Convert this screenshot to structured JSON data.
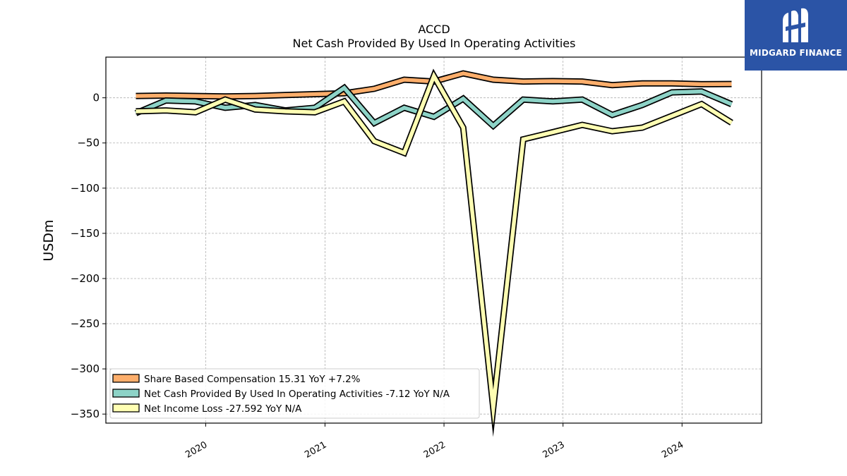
{
  "logo": {
    "text": "MIDGARD FINANCE",
    "bg_color": "#2b54a6"
  },
  "chart_data": {
    "type": "line",
    "title": "ACCD",
    "subtitle": "Net Cash Provided By Used In Operating Activities",
    "xlabel": "",
    "ylabel": "USDm",
    "xlim": [
      "2019-03-01",
      "2024-09-01"
    ],
    "ylim": [
      -360,
      45
    ],
    "yticks": [
      0,
      -50,
      -100,
      -150,
      -200,
      -250,
      -300,
      -350
    ],
    "ytick_labels": [
      "0",
      "−50",
      "−100",
      "−150",
      "−200",
      "−250",
      "−300",
      "−350"
    ],
    "xticks": [
      "2020-01-01",
      "2021-01-01",
      "2022-01-01",
      "2023-01-01",
      "2024-01-01"
    ],
    "xtick_labels": [
      "2020",
      "2021",
      "2022",
      "2023",
      "2024"
    ],
    "grid": true,
    "legend_position": "lower-left",
    "x": [
      "2019-06-01",
      "2019-09-01",
      "2019-12-01",
      "2020-03-01",
      "2020-06-01",
      "2020-09-01",
      "2020-12-01",
      "2021-03-01",
      "2021-06-01",
      "2021-09-01",
      "2021-12-01",
      "2022-03-01",
      "2022-06-01",
      "2022-09-01",
      "2022-12-01",
      "2023-03-01",
      "2023-06-01",
      "2023-09-01",
      "2023-12-01",
      "2024-03-01",
      "2024-06-01"
    ],
    "series": [
      {
        "name": "Share Based Compensation",
        "legend_label": "Share Based Compensation  15.31 YoY +7.2%",
        "color": "#fdae6b",
        "values": [
          2,
          2.5,
          2,
          1.5,
          2,
          3,
          4,
          5,
          10,
          20,
          18,
          27,
          20,
          18,
          18.5,
          18,
          14,
          16,
          16,
          15,
          15.3
        ]
      },
      {
        "name": "Net Cash Provided By Used In Operating Activities",
        "legend_label": "Net Cash Provided By Used In Operating Activities  -7.12 YoY N/A",
        "color": "#8dd3c7",
        "values": [
          -17,
          -3,
          -4,
          -11,
          -8,
          -14,
          -11,
          11,
          -28,
          -11,
          -21,
          -1,
          -31,
          -2,
          -4,
          -2,
          -19,
          -8,
          6,
          7,
          -7.1
        ]
      },
      {
        "name": "Net Income Loss",
        "legend_label": "Net Income Loss  -27.592 YoY N/A",
        "color": "#ffffb3",
        "values": [
          -15,
          -14,
          -16,
          -2,
          -13,
          -15,
          -16,
          -4,
          -48,
          -61,
          24,
          -33,
          -343,
          -46,
          -38,
          -30,
          -37,
          -33,
          -20,
          -7,
          -27.6
        ]
      }
    ]
  }
}
